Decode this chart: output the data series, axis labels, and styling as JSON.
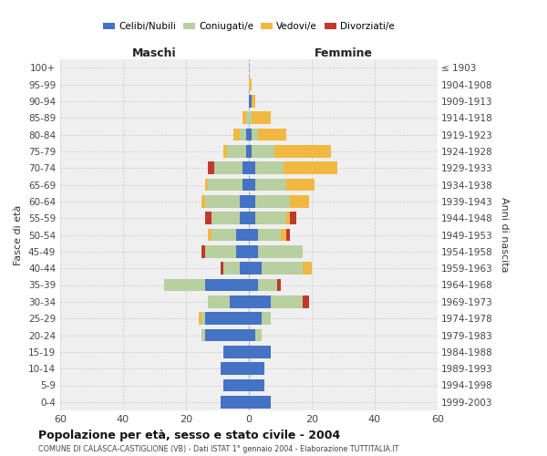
{
  "age_groups": [
    "0-4",
    "5-9",
    "10-14",
    "15-19",
    "20-24",
    "25-29",
    "30-34",
    "35-39",
    "40-44",
    "45-49",
    "50-54",
    "55-59",
    "60-64",
    "65-69",
    "70-74",
    "75-79",
    "80-84",
    "85-89",
    "90-94",
    "95-99",
    "100+"
  ],
  "birth_years": [
    "1999-2003",
    "1994-1998",
    "1989-1993",
    "1984-1988",
    "1979-1983",
    "1974-1978",
    "1969-1973",
    "1964-1968",
    "1959-1963",
    "1954-1958",
    "1949-1953",
    "1944-1948",
    "1939-1943",
    "1934-1938",
    "1929-1933",
    "1924-1928",
    "1919-1923",
    "1914-1918",
    "1909-1913",
    "1904-1908",
    "≤ 1903"
  ],
  "maschi": {
    "celibi": [
      9,
      8,
      9,
      8,
      14,
      14,
      6,
      14,
      3,
      4,
      4,
      3,
      3,
      2,
      2,
      1,
      1,
      0,
      0,
      0,
      0
    ],
    "coniugati": [
      0,
      0,
      0,
      0,
      1,
      1,
      7,
      13,
      5,
      10,
      8,
      9,
      11,
      11,
      9,
      6,
      2,
      1,
      0,
      0,
      0
    ],
    "vedovi": [
      0,
      0,
      0,
      0,
      0,
      1,
      0,
      0,
      0,
      0,
      1,
      0,
      1,
      1,
      0,
      1,
      2,
      1,
      0,
      0,
      0
    ],
    "divorziati": [
      0,
      0,
      0,
      0,
      0,
      0,
      0,
      0,
      1,
      1,
      0,
      2,
      0,
      0,
      2,
      0,
      0,
      0,
      0,
      0,
      0
    ]
  },
  "femmine": {
    "nubili": [
      7,
      5,
      5,
      7,
      2,
      4,
      7,
      3,
      4,
      3,
      3,
      2,
      2,
      2,
      2,
      1,
      1,
      0,
      1,
      0,
      0
    ],
    "coniugate": [
      0,
      0,
      0,
      0,
      2,
      3,
      10,
      6,
      13,
      14,
      7,
      10,
      11,
      10,
      9,
      7,
      2,
      1,
      0,
      0,
      0
    ],
    "vedove": [
      0,
      0,
      0,
      0,
      0,
      0,
      0,
      0,
      3,
      0,
      2,
      1,
      6,
      9,
      17,
      18,
      9,
      6,
      1,
      1,
      0
    ],
    "divorziate": [
      0,
      0,
      0,
      0,
      0,
      0,
      2,
      1,
      0,
      0,
      1,
      2,
      0,
      0,
      0,
      0,
      0,
      0,
      0,
      0,
      0
    ]
  },
  "colors": {
    "celibi_nubili": "#4472c4",
    "coniugati": "#b8cfa0",
    "vedovi": "#f0b840",
    "divorziati": "#c0392b"
  },
  "xlim": 60,
  "title": "Popolazione per età, sesso e stato civile - 2004",
  "subtitle": "COMUNE DI CALASCA-CASTIGLIONE (VB) - Dati ISTAT 1° gennaio 2004 - Elaborazione TUTTITALIA.IT",
  "ylabel_left": "Fasce di età",
  "ylabel_right": "Anni di nascita",
  "label_maschi": "Maschi",
  "label_femmine": "Femmine",
  "bg_color": "#efefef",
  "bar_height": 0.75
}
